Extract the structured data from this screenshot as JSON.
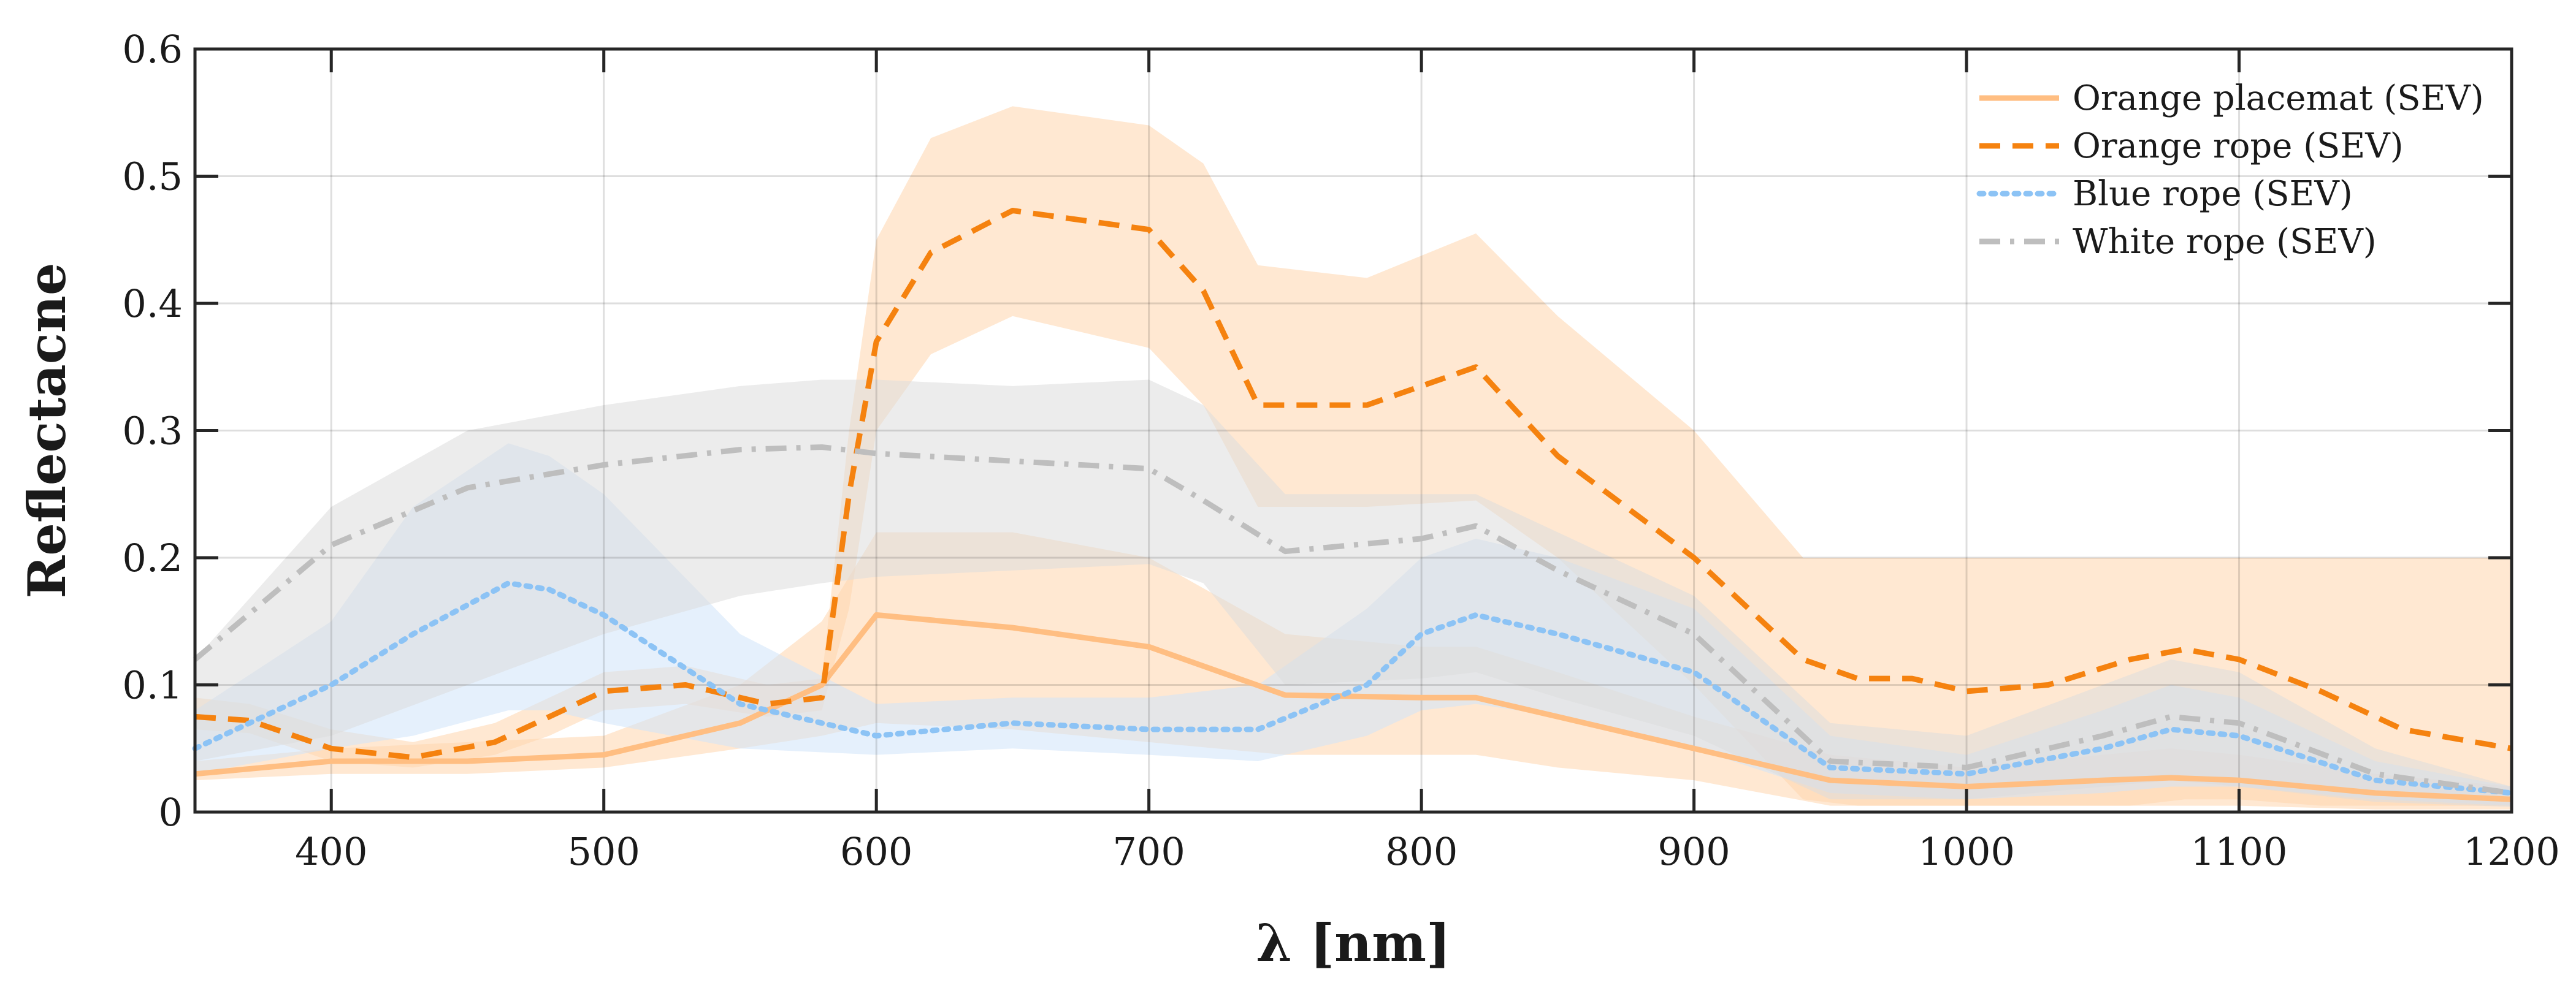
{
  "chart_data": {
    "type": "line",
    "title": "",
    "xlabel": "λ [nm]",
    "ylabel": "Reflectacne",
    "xlim": [
      350,
      1200
    ],
    "ylim": [
      0,
      0.6
    ],
    "xticks": [
      400,
      500,
      600,
      700,
      800,
      900,
      1000,
      1100,
      1200
    ],
    "xtick_labels": [
      "400",
      "500",
      "600",
      "700",
      "800",
      "900",
      "1000",
      "1100",
      "1200"
    ],
    "yticks": [
      0,
      0.1,
      0.2,
      0.3,
      0.4,
      0.5,
      0.6
    ],
    "ytick_labels": [
      "0",
      "0.1",
      "0.2",
      "0.3",
      "0.4",
      "0.5",
      "0.6"
    ],
    "grid": true,
    "legend_position": "top-right",
    "series": [
      {
        "name": "Orange placemat (SEV)",
        "color": "#ffbe82",
        "fill_color": "#ffd5ad",
        "line_style": "solid",
        "x": [
          350,
          400,
          450,
          500,
          550,
          580,
          600,
          650,
          700,
          750,
          800,
          820,
          850,
          900,
          950,
          1000,
          1050,
          1075,
          1100,
          1150,
          1200
        ],
        "values": [
          0.03,
          0.04,
          0.04,
          0.045,
          0.07,
          0.1,
          0.155,
          0.145,
          0.13,
          0.092,
          0.09,
          0.09,
          0.075,
          0.05,
          0.025,
          0.02,
          0.025,
          0.027,
          0.025,
          0.015,
          0.01
        ],
        "lower": [
          0.025,
          0.03,
          0.03,
          0.035,
          0.05,
          0.06,
          0.07,
          0.065,
          0.055,
          0.045,
          0.045,
          0.045,
          0.035,
          0.025,
          0.005,
          0.005,
          0.005,
          0.005,
          0.005,
          0.002,
          0.002
        ],
        "upper": [
          0.04,
          0.05,
          0.055,
          0.06,
          0.1,
          0.15,
          0.22,
          0.22,
          0.2,
          0.14,
          0.13,
          0.13,
          0.11,
          0.075,
          0.045,
          0.035,
          0.045,
          0.05,
          0.045,
          0.03,
          0.02
        ]
      },
      {
        "name": "Orange rope (SEV)",
        "color": "#f5820f",
        "fill_color": "#ffd5ad",
        "line_style": "dashed",
        "x": [
          350,
          370,
          400,
          430,
          460,
          480,
          500,
          530,
          560,
          580,
          590,
          600,
          620,
          650,
          700,
          720,
          740,
          780,
          820,
          850,
          900,
          940,
          960,
          980,
          1000,
          1030,
          1060,
          1080,
          1100,
          1130,
          1160,
          1200
        ],
        "values": [
          0.075,
          0.072,
          0.05,
          0.043,
          0.055,
          0.075,
          0.095,
          0.1,
          0.085,
          0.09,
          0.25,
          0.37,
          0.44,
          0.473,
          0.458,
          0.41,
          0.32,
          0.32,
          0.35,
          0.28,
          0.2,
          0.12,
          0.105,
          0.105,
          0.095,
          0.1,
          0.12,
          0.128,
          0.12,
          0.095,
          0.065,
          0.05
        ],
        "lower": [
          0.065,
          0.062,
          0.04,
          0.035,
          0.045,
          0.06,
          0.08,
          0.085,
          0.075,
          0.08,
          0.16,
          0.3,
          0.36,
          0.39,
          0.365,
          0.32,
          0.24,
          0.24,
          0.245,
          0.2,
          0.1,
          0.01,
          0.005,
          0.005,
          0.005,
          0.005,
          0.005,
          0.01,
          0.01,
          0.005,
          0.005,
          0.005
        ],
        "upper": [
          0.09,
          0.085,
          0.065,
          0.055,
          0.07,
          0.09,
          0.11,
          0.115,
          0.1,
          0.105,
          0.3,
          0.45,
          0.53,
          0.555,
          0.54,
          0.51,
          0.43,
          0.42,
          0.455,
          0.39,
          0.3,
          0.2,
          0.2,
          0.2,
          0.2,
          0.2,
          0.2,
          0.2,
          0.2,
          0.2,
          0.2,
          0.2
        ]
      },
      {
        "name": "Blue rope (SEV)",
        "color": "#8cc3f5",
        "fill_color": "#cfe4fa",
        "line_style": "dotted",
        "x": [
          350,
          400,
          430,
          465,
          480,
          500,
          550,
          600,
          650,
          700,
          740,
          780,
          800,
          820,
          850,
          900,
          950,
          1000,
          1050,
          1075,
          1100,
          1150,
          1200
        ],
        "values": [
          0.05,
          0.1,
          0.14,
          0.18,
          0.175,
          0.155,
          0.085,
          0.06,
          0.07,
          0.065,
          0.065,
          0.1,
          0.14,
          0.155,
          0.14,
          0.11,
          0.035,
          0.03,
          0.05,
          0.065,
          0.06,
          0.025,
          0.015
        ],
        "lower": [
          0.03,
          0.05,
          0.06,
          0.08,
          0.08,
          0.07,
          0.05,
          0.045,
          0.05,
          0.045,
          0.04,
          0.06,
          0.08,
          0.085,
          0.075,
          0.05,
          0.015,
          0.01,
          0.015,
          0.02,
          0.02,
          0.01,
          0.005
        ],
        "upper": [
          0.08,
          0.15,
          0.24,
          0.29,
          0.28,
          0.25,
          0.14,
          0.085,
          0.09,
          0.09,
          0.1,
          0.16,
          0.2,
          0.215,
          0.2,
          0.16,
          0.06,
          0.045,
          0.08,
          0.1,
          0.09,
          0.04,
          0.02
        ]
      },
      {
        "name": "White rope (SEV)",
        "color": "#bebebe",
        "fill_color": "#dcdcdc",
        "line_style": "dash-dot",
        "x": [
          350,
          400,
          450,
          500,
          550,
          580,
          600,
          650,
          700,
          720,
          750,
          800,
          820,
          850,
          900,
          950,
          1000,
          1050,
          1075,
          1100,
          1150,
          1200
        ],
        "values": [
          0.12,
          0.21,
          0.255,
          0.273,
          0.285,
          0.287,
          0.282,
          0.276,
          0.27,
          0.245,
          0.205,
          0.215,
          0.225,
          0.19,
          0.14,
          0.04,
          0.035,
          0.06,
          0.075,
          0.07,
          0.03,
          0.015
        ],
        "lower": [
          0.04,
          0.06,
          0.1,
          0.14,
          0.17,
          0.18,
          0.185,
          0.19,
          0.195,
          0.18,
          0.1,
          0.105,
          0.11,
          0.09,
          0.06,
          0.01,
          0.01,
          0.02,
          0.025,
          0.02,
          0.008,
          0.004
        ],
        "upper": [
          0.12,
          0.24,
          0.3,
          0.32,
          0.335,
          0.34,
          0.34,
          0.335,
          0.34,
          0.32,
          0.25,
          0.25,
          0.25,
          0.22,
          0.17,
          0.07,
          0.06,
          0.1,
          0.12,
          0.11,
          0.05,
          0.02
        ]
      }
    ]
  }
}
